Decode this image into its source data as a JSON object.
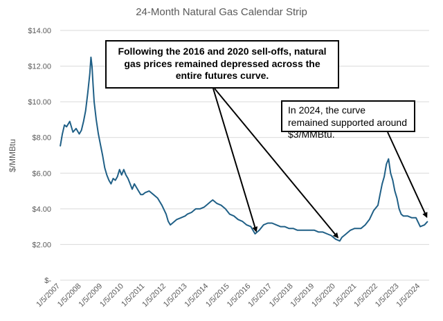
{
  "chart_data": {
    "type": "line",
    "title": "24-Month Natural Gas Calendar Strip",
    "ylabel": "$/MMBtu",
    "xlabel": "",
    "ylim": [
      0,
      14
    ],
    "y_ticks": [
      "$-",
      "$2.00",
      "$4.00",
      "$6.00",
      "$8.00",
      "$10.00",
      "$12.00",
      "$14.00"
    ],
    "x_ticks": [
      "1/5/2007",
      "1/5/2008",
      "1/5/2009",
      "1/5/2010",
      "1/5/2011",
      "1/5/2012",
      "1/5/2013",
      "1/5/2014",
      "1/5/2015",
      "1/5/2016",
      "1/5/2017",
      "1/5/2018",
      "1/5/2019",
      "1/5/2020",
      "1/5/2021",
      "1/5/2022",
      "1/5/2023",
      "1/5/2024"
    ],
    "grid": "horizontal",
    "line_color": "#1f5f86",
    "series": [
      {
        "x": [
          2007.0,
          2007.1,
          2007.2,
          2007.3,
          2007.45,
          2007.6,
          2007.75,
          2007.9,
          2008.0,
          2008.1,
          2008.2,
          2008.3,
          2008.4,
          2008.45,
          2008.5,
          2008.55,
          2008.6,
          2008.7,
          2008.8,
          2008.9,
          2009.0,
          2009.1,
          2009.2,
          2009.3,
          2009.4,
          2009.5,
          2009.6,
          2009.7,
          2009.8,
          2009.9,
          2010.0,
          2010.1,
          2010.2,
          2010.3,
          2010.4,
          2010.5,
          2010.6,
          2010.7,
          2010.8,
          2010.9,
          2011.0,
          2011.2,
          2011.4,
          2011.6,
          2011.8,
          2012.0,
          2012.1,
          2012.2,
          2012.3,
          2012.5,
          2012.7,
          2012.9,
          2013.0,
          2013.2,
          2013.4,
          2013.6,
          2013.8,
          2014.0,
          2014.1,
          2014.2,
          2014.4,
          2014.6,
          2014.8,
          2015.0,
          2015.2,
          2015.4,
          2015.6,
          2015.8,
          2016.0,
          2016.1,
          2016.2,
          2016.4,
          2016.6,
          2016.8,
          2017.0,
          2017.2,
          2017.4,
          2017.6,
          2017.8,
          2018.0,
          2018.2,
          2018.4,
          2018.6,
          2018.8,
          2019.0,
          2019.2,
          2019.4,
          2019.6,
          2019.8,
          2020.0,
          2020.2,
          2020.3,
          2020.5,
          2020.7,
          2020.9,
          2021.0,
          2021.2,
          2021.4,
          2021.6,
          2021.8,
          2022.0,
          2022.1,
          2022.2,
          2022.3,
          2022.4,
          2022.5,
          2022.6,
          2022.7,
          2022.8,
          2022.9,
          2023.0,
          2023.1,
          2023.2,
          2023.4,
          2023.6,
          2023.8,
          2024.0,
          2024.2,
          2024.35
        ],
        "y": [
          7.5,
          8.2,
          8.7,
          8.6,
          8.9,
          8.3,
          8.5,
          8.2,
          8.4,
          8.9,
          9.5,
          10.5,
          11.6,
          12.5,
          12.0,
          11.0,
          10.0,
          9.0,
          8.2,
          7.6,
          7.0,
          6.3,
          5.9,
          5.6,
          5.4,
          5.7,
          5.6,
          5.8,
          6.2,
          5.9,
          6.2,
          5.9,
          5.7,
          5.4,
          5.1,
          5.4,
          5.2,
          5.0,
          4.8,
          4.8,
          4.9,
          5.0,
          4.8,
          4.6,
          4.2,
          3.7,
          3.3,
          3.1,
          3.2,
          3.4,
          3.5,
          3.6,
          3.7,
          3.8,
          4.0,
          4.0,
          4.1,
          4.3,
          4.4,
          4.5,
          4.3,
          4.2,
          4.0,
          3.7,
          3.6,
          3.4,
          3.3,
          3.1,
          3.0,
          2.8,
          2.6,
          2.8,
          3.1,
          3.2,
          3.2,
          3.1,
          3.0,
          3.0,
          2.9,
          2.9,
          2.8,
          2.8,
          2.8,
          2.8,
          2.8,
          2.7,
          2.7,
          2.6,
          2.5,
          2.3,
          2.2,
          2.4,
          2.6,
          2.8,
          2.9,
          2.9,
          2.9,
          3.1,
          3.4,
          3.9,
          4.2,
          4.8,
          5.4,
          5.8,
          6.5,
          6.8,
          6.0,
          5.6,
          5.0,
          4.6,
          4.0,
          3.7,
          3.6,
          3.6,
          3.5,
          3.5,
          3.0,
          3.1,
          3.3
        ]
      }
    ],
    "annotations": [
      {
        "text": "Following the 2016 and 2020 sell-offs, natural gas  prices remained depressed across the entire futures curve.",
        "points_to": [
          [
            2016.25,
            2.6
          ],
          [
            2020.1,
            2.25
          ]
        ]
      },
      {
        "text": "In 2024, the curve  remained supported around $3/MMBtu.",
        "points_to": [
          [
            2024.3,
            3.4
          ]
        ]
      }
    ]
  }
}
